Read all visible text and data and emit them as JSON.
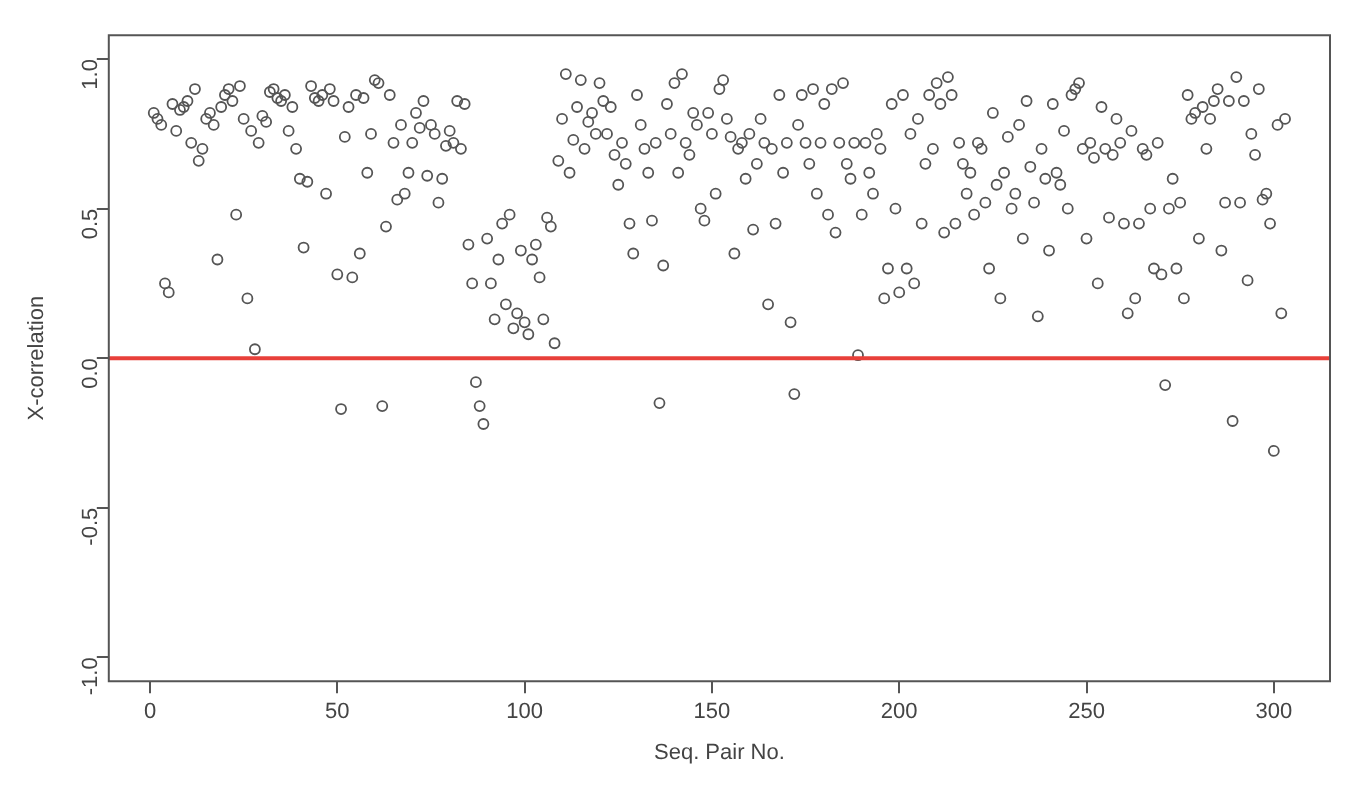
{
  "chart_data": {
    "type": "scatter",
    "xlabel": "Seq. Pair No.",
    "ylabel": "X-correlation",
    "x": [
      1,
      2,
      3,
      4,
      5,
      6,
      7,
      8,
      9,
      10,
      11,
      12,
      13,
      14,
      15,
      16,
      17,
      18,
      19,
      20,
      21,
      22,
      23,
      24,
      25,
      26,
      27,
      28,
      29,
      30,
      31,
      32,
      33,
      34,
      35,
      36,
      37,
      38,
      39,
      40,
      41,
      42,
      43,
      44,
      45,
      46,
      47,
      48,
      49,
      50,
      51,
      52,
      53,
      54,
      55,
      56,
      57,
      58,
      59,
      60,
      61,
      62,
      63,
      64,
      65,
      66,
      67,
      68,
      69,
      70,
      71,
      72,
      73,
      74,
      75,
      76,
      77,
      78,
      79,
      80,
      81,
      82,
      83,
      84,
      85,
      86,
      87,
      88,
      89,
      90,
      91,
      92,
      93,
      94,
      95,
      96,
      97,
      98,
      99,
      100,
      101,
      102,
      103,
      104,
      105,
      106,
      107,
      108,
      109,
      110,
      111,
      112,
      113,
      114,
      115,
      116,
      117,
      118,
      119,
      120,
      121,
      122,
      123,
      124,
      125,
      126,
      127,
      128,
      129,
      130,
      131,
      132,
      133,
      134,
      135,
      136,
      137,
      138,
      139,
      140,
      141,
      142,
      143,
      144,
      145,
      146,
      147,
      148,
      149,
      150,
      151,
      152,
      153,
      154,
      155,
      156,
      157,
      158,
      159,
      160,
      161,
      162,
      163,
      164,
      165,
      166,
      167,
      168,
      169,
      170,
      171,
      172,
      173,
      174,
      175,
      176,
      177,
      178,
      179,
      180,
      181,
      182,
      183,
      184,
      185,
      186,
      187,
      188,
      189,
      190,
      191,
      192,
      193,
      194,
      195,
      196,
      197,
      198,
      199,
      200,
      201,
      202,
      203,
      204,
      205,
      206,
      207,
      208,
      209,
      210,
      211,
      212,
      213,
      214,
      215,
      216,
      217,
      218,
      219,
      220,
      221,
      222,
      223,
      224,
      225,
      226,
      227,
      228,
      229,
      230,
      231,
      232,
      233,
      234,
      235,
      236,
      237,
      238,
      239,
      240,
      241,
      242,
      243,
      244,
      245,
      246,
      247,
      248,
      249,
      250,
      251,
      252,
      253,
      254,
      255,
      256,
      257,
      258,
      259,
      260,
      261,
      262,
      263,
      264,
      265,
      266,
      267,
      268,
      269,
      270,
      271,
      272,
      273,
      274,
      275,
      276,
      277,
      278,
      279,
      280,
      281,
      282,
      283,
      284,
      285,
      286,
      287,
      288,
      289,
      290,
      291,
      292,
      293,
      294,
      295,
      296,
      297,
      298,
      299,
      300,
      301,
      302,
      303
    ],
    "values": [
      0.82,
      0.8,
      0.78,
      0.25,
      0.22,
      0.85,
      0.76,
      0.83,
      0.84,
      0.86,
      0.72,
      0.9,
      0.66,
      0.7,
      0.8,
      0.82,
      0.78,
      0.33,
      0.84,
      0.88,
      0.9,
      0.86,
      0.48,
      0.91,
      0.8,
      0.2,
      0.76,
      0.03,
      0.72,
      0.81,
      0.79,
      0.89,
      0.9,
      0.87,
      0.86,
      0.88,
      0.76,
      0.84,
      0.7,
      0.6,
      0.37,
      0.59,
      0.91,
      0.87,
      0.86,
      0.88,
      0.55,
      0.9,
      0.86,
      0.28,
      -0.17,
      0.74,
      0.84,
      0.27,
      0.88,
      0.35,
      0.87,
      0.62,
      0.75,
      0.93,
      0.92,
      -0.16,
      0.44,
      0.88,
      0.72,
      0.53,
      0.78,
      0.55,
      0.62,
      0.72,
      0.82,
      0.77,
      0.86,
      0.61,
      0.78,
      0.75,
      0.52,
      0.6,
      0.71,
      0.76,
      0.72,
      0.86,
      0.7,
      0.85,
      0.38,
      0.25,
      -0.08,
      -0.16,
      -0.22,
      0.4,
      0.25,
      0.13,
      0.33,
      0.45,
      0.18,
      0.48,
      0.1,
      0.15,
      0.36,
      0.12,
      0.08,
      0.33,
      0.38,
      0.27,
      0.13,
      0.47,
      0.44,
      0.05,
      0.66,
      0.8,
      0.95,
      0.62,
      0.73,
      0.84,
      0.93,
      0.7,
      0.79,
      0.82,
      0.75,
      0.92,
      0.86,
      0.75,
      0.84,
      0.68,
      0.58,
      0.72,
      0.65,
      0.45,
      0.35,
      0.88,
      0.78,
      0.7,
      0.62,
      0.46,
      0.72,
      -0.15,
      0.31,
      0.85,
      0.75,
      0.92,
      0.62,
      0.95,
      0.72,
      0.68,
      0.82,
      0.78,
      0.5,
      0.46,
      0.82,
      0.75,
      0.55,
      0.9,
      0.93,
      0.8,
      0.74,
      0.35,
      0.7,
      0.72,
      0.6,
      0.75,
      0.43,
      0.65,
      0.8,
      0.72,
      0.18,
      0.7,
      0.45,
      0.88,
      0.62,
      0.72,
      0.12,
      -0.12,
      0.78,
      0.88,
      0.72,
      0.65,
      0.9,
      0.55,
      0.72,
      0.85,
      0.48,
      0.9,
      0.42,
      0.72,
      0.92,
      0.65,
      0.6,
      0.72,
      0.01,
      0.48,
      0.72,
      0.62,
      0.55,
      0.75,
      0.7,
      0.2,
      0.3,
      0.85,
      0.5,
      0.22,
      0.88,
      0.3,
      0.75,
      0.25,
      0.8,
      0.45,
      0.65,
      0.88,
      0.7,
      0.92,
      0.85,
      0.42,
      0.94,
      0.88,
      0.45,
      0.72,
      0.65,
      0.55,
      0.62,
      0.48,
      0.72,
      0.7,
      0.52,
      0.3,
      0.82,
      0.58,
      0.2,
      0.62,
      0.74,
      0.5,
      0.55,
      0.78,
      0.4,
      0.86,
      0.64,
      0.52,
      0.14,
      0.7,
      0.6,
      0.36,
      0.85,
      0.62,
      0.58,
      0.76,
      0.5,
      0.88,
      0.9,
      0.92,
      0.7,
      0.4,
      0.72,
      0.67,
      0.25,
      0.84,
      0.7,
      0.47,
      0.68,
      0.8,
      0.72,
      0.45,
      0.15,
      0.76,
      0.2,
      0.45,
      0.7,
      0.68,
      0.5,
      0.3,
      0.72,
      0.28,
      -0.09,
      0.5,
      0.6,
      0.3,
      0.52,
      0.2,
      0.88,
      0.8,
      0.82,
      0.4,
      0.84,
      0.7,
      0.8,
      0.86,
      0.9,
      0.36,
      0.52,
      0.86,
      -0.21,
      0.94,
      0.52,
      0.86,
      0.26,
      0.75,
      0.68,
      0.9,
      0.53,
      0.55,
      0.45,
      -0.31,
      0.78,
      0.15,
      0.8
    ],
    "color": "#555555",
    "marker": "circle",
    "xlim": [
      -11,
      315
    ],
    "ylim": [
      -1.08,
      1.08
    ],
    "xticks": [
      0,
      50,
      100,
      150,
      200,
      250,
      300
    ],
    "yticks": [
      {
        "value": -1,
        "label": "-1.0"
      },
      {
        "value": -0.5,
        "label": "-0.5"
      },
      {
        "value": 0,
        "label": "0.0"
      },
      {
        "value": 0.5,
        "label": "0.5"
      },
      {
        "value": 1,
        "label": "1.0"
      }
    ],
    "ref_lines": [
      {
        "axis": "y",
        "value": 0,
        "color": "#e8403a"
      }
    ],
    "grid": false,
    "legend": false
  }
}
